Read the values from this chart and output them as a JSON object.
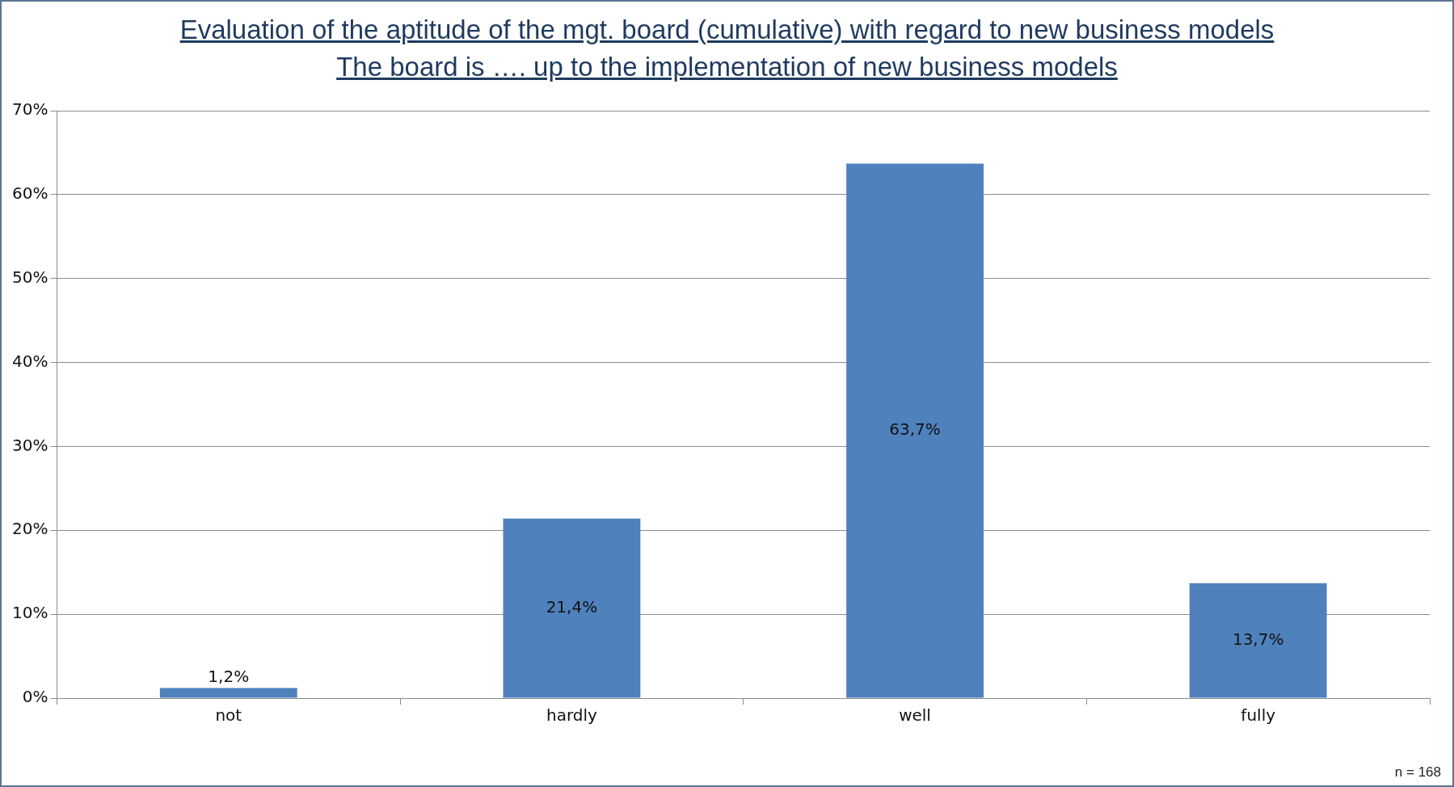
{
  "chart_data": {
    "type": "bar",
    "title": "Evaluation of the aptitude of the mgt. board (cumulative) with regard to new business models",
    "subtitle": "The board is …. up to the implementation of new business models",
    "categories": [
      "not",
      "hardly",
      "well",
      "fully"
    ],
    "values": [
      1.2,
      21.4,
      63.7,
      13.7
    ],
    "value_labels": [
      "1,2%",
      "21,4%",
      "63,7%",
      "13,7%"
    ],
    "color": "#4f81bd",
    "ylim": [
      0,
      70
    ],
    "yticks": [
      {
        "value": 0,
        "label": "0%"
      },
      {
        "value": 10,
        "label": "10%"
      },
      {
        "value": 20,
        "label": "20%"
      },
      {
        "value": 30,
        "label": "30%"
      },
      {
        "value": 40,
        "label": "40%"
      },
      {
        "value": 50,
        "label": "50%"
      },
      {
        "value": 60,
        "label": "60%"
      },
      {
        "value": 70,
        "label": "70%"
      }
    ],
    "grid": "y",
    "legend": false,
    "annotations": [
      "n = 168"
    ]
  }
}
